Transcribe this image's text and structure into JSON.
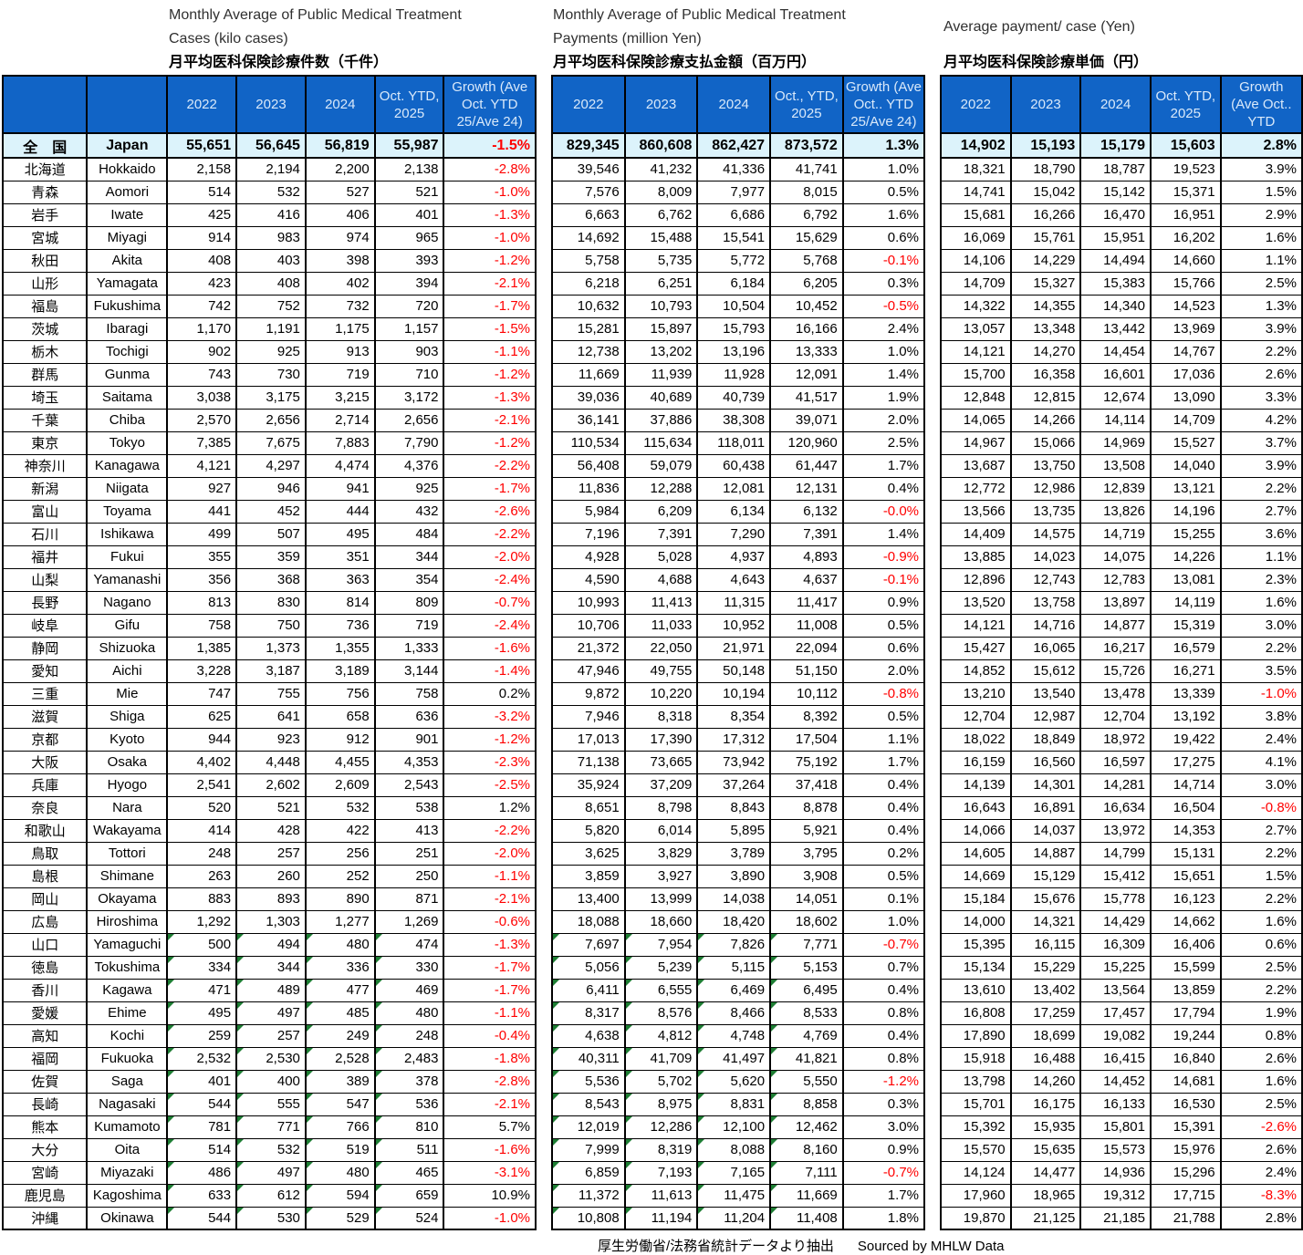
{
  "tables": [
    {
      "title_en1": "Monthly Average of Public Medical Treatment",
      "title_en2": "Cases (kilo cases)",
      "title_jp": "月平均医科保険診療件数（千件）",
      "headers": [
        "2022",
        "2023",
        "2024",
        "Oct.  YTD,\n2025",
        "Growth (Ave\nOct.  YTD\n25/Ave 24)"
      ]
    },
    {
      "title_en1": "Monthly Average of Public Medical Treatment",
      "title_en2": "Payments (million Yen)",
      "title_jp": "月平均医科保険診療支払金額（百万円）",
      "headers": [
        "2022",
        "2023",
        "2024",
        "Oct., YTD,\n2025",
        "Growth (Ave\nOct..  YTD\n25/Ave 24)"
      ]
    },
    {
      "title_en1": "",
      "title_en2": "Average payment/ case (Yen)",
      "title_jp": "月平均医科保険診療単価（円）",
      "headers": [
        "2022",
        "2023",
        "2024",
        "Oct.  YTD,\n2025",
        "Growth\n(Ave Oct..\nYTD"
      ]
    }
  ],
  "rows": [
    {
      "jp": "全　国",
      "en": "Japan",
      "t1": [
        "55,651",
        "56,645",
        "56,819",
        "55,987",
        "-1.5%"
      ],
      "t2": [
        "829,345",
        "860,608",
        "862,427",
        "873,572",
        "1.3%"
      ],
      "t3": [
        "14,902",
        "15,193",
        "15,179",
        "15,603",
        "2.8%"
      ]
    },
    {
      "jp": "北海道",
      "en": "Hokkaido",
      "t1": [
        "2,158",
        "2,194",
        "2,200",
        "2,138",
        "-2.8%"
      ],
      "t2": [
        "39,546",
        "41,232",
        "41,336",
        "41,741",
        "1.0%"
      ],
      "t3": [
        "18,321",
        "18,790",
        "18,787",
        "19,523",
        "3.9%"
      ]
    },
    {
      "jp": "青森",
      "en": "Aomori",
      "t1": [
        "514",
        "532",
        "527",
        "521",
        "-1.0%"
      ],
      "t2": [
        "7,576",
        "8,009",
        "7,977",
        "8,015",
        "0.5%"
      ],
      "t3": [
        "14,741",
        "15,042",
        "15,142",
        "15,371",
        "1.5%"
      ]
    },
    {
      "jp": "岩手",
      "en": "Iwate",
      "t1": [
        "425",
        "416",
        "406",
        "401",
        "-1.3%"
      ],
      "t2": [
        "6,663",
        "6,762",
        "6,686",
        "6,792",
        "1.6%"
      ],
      "t3": [
        "15,681",
        "16,266",
        "16,470",
        "16,951",
        "2.9%"
      ]
    },
    {
      "jp": "宮城",
      "en": "Miyagi",
      "t1": [
        "914",
        "983",
        "974",
        "965",
        "-1.0%"
      ],
      "t2": [
        "14,692",
        "15,488",
        "15,541",
        "15,629",
        "0.6%"
      ],
      "t3": [
        "16,069",
        "15,761",
        "15,951",
        "16,202",
        "1.6%"
      ]
    },
    {
      "jp": "秋田",
      "en": "Akita",
      "t1": [
        "408",
        "403",
        "398",
        "393",
        "-1.2%"
      ],
      "t2": [
        "5,758",
        "5,735",
        "5,772",
        "5,768",
        "-0.1%"
      ],
      "t3": [
        "14,106",
        "14,229",
        "14,494",
        "14,660",
        "1.1%"
      ]
    },
    {
      "jp": "山形",
      "en": "Yamagata",
      "t1": [
        "423",
        "408",
        "402",
        "394",
        "-2.1%"
      ],
      "t2": [
        "6,218",
        "6,251",
        "6,184",
        "6,205",
        "0.3%"
      ],
      "t3": [
        "14,709",
        "15,327",
        "15,383",
        "15,766",
        "2.5%"
      ]
    },
    {
      "jp": "福島",
      "en": "Fukushima",
      "t1": [
        "742",
        "752",
        "732",
        "720",
        "-1.7%"
      ],
      "t2": [
        "10,632",
        "10,793",
        "10,504",
        "10,452",
        "-0.5%"
      ],
      "t3": [
        "14,322",
        "14,355",
        "14,340",
        "14,523",
        "1.3%"
      ]
    },
    {
      "jp": "茨城",
      "en": "Ibaragi",
      "t1": [
        "1,170",
        "1,191",
        "1,175",
        "1,157",
        "-1.5%"
      ],
      "t2": [
        "15,281",
        "15,897",
        "15,793",
        "16,166",
        "2.4%"
      ],
      "t3": [
        "13,057",
        "13,348",
        "13,442",
        "13,969",
        "3.9%"
      ]
    },
    {
      "jp": "栃木",
      "en": "Tochigi",
      "t1": [
        "902",
        "925",
        "913",
        "903",
        "-1.1%"
      ],
      "t2": [
        "12,738",
        "13,202",
        "13,196",
        "13,333",
        "1.0%"
      ],
      "t3": [
        "14,121",
        "14,270",
        "14,454",
        "14,767",
        "2.2%"
      ]
    },
    {
      "jp": "群馬",
      "en": "Gunma",
      "t1": [
        "743",
        "730",
        "719",
        "710",
        "-1.2%"
      ],
      "t2": [
        "11,669",
        "11,939",
        "11,928",
        "12,091",
        "1.4%"
      ],
      "t3": [
        "15,700",
        "16,358",
        "16,601",
        "17,036",
        "2.6%"
      ]
    },
    {
      "jp": "埼玉",
      "en": "Saitama",
      "t1": [
        "3,038",
        "3,175",
        "3,215",
        "3,172",
        "-1.3%"
      ],
      "t2": [
        "39,036",
        "40,689",
        "40,739",
        "41,517",
        "1.9%"
      ],
      "t3": [
        "12,848",
        "12,815",
        "12,674",
        "13,090",
        "3.3%"
      ]
    },
    {
      "jp": "千葉",
      "en": "Chiba",
      "t1": [
        "2,570",
        "2,656",
        "2,714",
        "2,656",
        "-2.1%"
      ],
      "t2": [
        "36,141",
        "37,886",
        "38,308",
        "39,071",
        "2.0%"
      ],
      "t3": [
        "14,065",
        "14,266",
        "14,114",
        "14,709",
        "4.2%"
      ]
    },
    {
      "jp": "東京",
      "en": "Tokyo",
      "t1": [
        "7,385",
        "7,675",
        "7,883",
        "7,790",
        "-1.2%"
      ],
      "t2": [
        "110,534",
        "115,634",
        "118,011",
        "120,960",
        "2.5%"
      ],
      "t3": [
        "14,967",
        "15,066",
        "14,969",
        "15,527",
        "3.7%"
      ]
    },
    {
      "jp": "神奈川",
      "en": "Kanagawa",
      "t1": [
        "4,121",
        "4,297",
        "4,474",
        "4,376",
        "-2.2%"
      ],
      "t2": [
        "56,408",
        "59,079",
        "60,438",
        "61,447",
        "1.7%"
      ],
      "t3": [
        "13,687",
        "13,750",
        "13,508",
        "14,040",
        "3.9%"
      ]
    },
    {
      "jp": "新潟",
      "en": "Niigata",
      "t1": [
        "927",
        "946",
        "941",
        "925",
        "-1.7%"
      ],
      "t2": [
        "11,836",
        "12,288",
        "12,081",
        "12,131",
        "0.4%"
      ],
      "t3": [
        "12,772",
        "12,986",
        "12,839",
        "13,121",
        "2.2%"
      ]
    },
    {
      "jp": "富山",
      "en": "Toyama",
      "t1": [
        "441",
        "452",
        "444",
        "432",
        "-2.6%"
      ],
      "t2": [
        "5,984",
        "6,209",
        "6,134",
        "6,132",
        "-0.0%"
      ],
      "t3": [
        "13,566",
        "13,735",
        "13,826",
        "14,196",
        "2.7%"
      ]
    },
    {
      "jp": "石川",
      "en": "Ishikawa",
      "t1": [
        "499",
        "507",
        "495",
        "484",
        "-2.2%"
      ],
      "t2": [
        "7,196",
        "7,391",
        "7,290",
        "7,391",
        "1.4%"
      ],
      "t3": [
        "14,409",
        "14,575",
        "14,719",
        "15,255",
        "3.6%"
      ]
    },
    {
      "jp": "福井",
      "en": "Fukui",
      "t1": [
        "355",
        "359",
        "351",
        "344",
        "-2.0%"
      ],
      "t2": [
        "4,928",
        "5,028",
        "4,937",
        "4,893",
        "-0.9%"
      ],
      "t3": [
        "13,885",
        "14,023",
        "14,075",
        "14,226",
        "1.1%"
      ]
    },
    {
      "jp": "山梨",
      "en": "Yamanashi",
      "t1": [
        "356",
        "368",
        "363",
        "354",
        "-2.4%"
      ],
      "t2": [
        "4,590",
        "4,688",
        "4,643",
        "4,637",
        "-0.1%"
      ],
      "t3": [
        "12,896",
        "12,743",
        "12,783",
        "13,081",
        "2.3%"
      ]
    },
    {
      "jp": "長野",
      "en": "Nagano",
      "t1": [
        "813",
        "830",
        "814",
        "809",
        "-0.7%"
      ],
      "t2": [
        "10,993",
        "11,413",
        "11,315",
        "11,417",
        "0.9%"
      ],
      "t3": [
        "13,520",
        "13,758",
        "13,897",
        "14,119",
        "1.6%"
      ]
    },
    {
      "jp": "岐阜",
      "en": "Gifu",
      "t1": [
        "758",
        "750",
        "736",
        "719",
        "-2.4%"
      ],
      "t2": [
        "10,706",
        "11,033",
        "10,952",
        "11,008",
        "0.5%"
      ],
      "t3": [
        "14,121",
        "14,716",
        "14,877",
        "15,319",
        "3.0%"
      ]
    },
    {
      "jp": "静岡",
      "en": "Shizuoka",
      "t1": [
        "1,385",
        "1,373",
        "1,355",
        "1,333",
        "-1.6%"
      ],
      "t2": [
        "21,372",
        "22,050",
        "21,971",
        "22,094",
        "0.6%"
      ],
      "t3": [
        "15,427",
        "16,065",
        "16,217",
        "16,579",
        "2.2%"
      ]
    },
    {
      "jp": "愛知",
      "en": "Aichi",
      "t1": [
        "3,228",
        "3,187",
        "3,189",
        "3,144",
        "-1.4%"
      ],
      "t2": [
        "47,946",
        "49,755",
        "50,148",
        "51,150",
        "2.0%"
      ],
      "t3": [
        "14,852",
        "15,612",
        "15,726",
        "16,271",
        "3.5%"
      ]
    },
    {
      "jp": "三重",
      "en": "Mie",
      "t1": [
        "747",
        "755",
        "756",
        "758",
        "0.2%"
      ],
      "t2": [
        "9,872",
        "10,220",
        "10,194",
        "10,112",
        "-0.8%"
      ],
      "t3": [
        "13,210",
        "13,540",
        "13,478",
        "13,339",
        "-1.0%"
      ]
    },
    {
      "jp": "滋賀",
      "en": "Shiga",
      "t1": [
        "625",
        "641",
        "658",
        "636",
        "-3.2%"
      ],
      "t2": [
        "7,946",
        "8,318",
        "8,354",
        "8,392",
        "0.5%"
      ],
      "t3": [
        "12,704",
        "12,987",
        "12,704",
        "13,192",
        "3.8%"
      ]
    },
    {
      "jp": "京都",
      "en": "Kyoto",
      "t1": [
        "944",
        "923",
        "912",
        "901",
        "-1.2%"
      ],
      "t2": [
        "17,013",
        "17,390",
        "17,312",
        "17,504",
        "1.1%"
      ],
      "t3": [
        "18,022",
        "18,849",
        "18,972",
        "19,422",
        "2.4%"
      ]
    },
    {
      "jp": "大阪",
      "en": "Osaka",
      "t1": [
        "4,402",
        "4,448",
        "4,455",
        "4,353",
        "-2.3%"
      ],
      "t2": [
        "71,138",
        "73,665",
        "73,942",
        "75,192",
        "1.7%"
      ],
      "t3": [
        "16,159",
        "16,560",
        "16,597",
        "17,275",
        "4.1%"
      ]
    },
    {
      "jp": "兵庫",
      "en": "Hyogo",
      "t1": [
        "2,541",
        "2,602",
        "2,609",
        "2,543",
        "-2.5%"
      ],
      "t2": [
        "35,924",
        "37,209",
        "37,264",
        "37,418",
        "0.4%"
      ],
      "t3": [
        "14,139",
        "14,301",
        "14,281",
        "14,714",
        "3.0%"
      ]
    },
    {
      "jp": "奈良",
      "en": "Nara",
      "t1": [
        "520",
        "521",
        "532",
        "538",
        "1.2%"
      ],
      "t2": [
        "8,651",
        "8,798",
        "8,843",
        "8,878",
        "0.4%"
      ],
      "t3": [
        "16,643",
        "16,891",
        "16,634",
        "16,504",
        "-0.8%"
      ]
    },
    {
      "jp": "和歌山",
      "en": "Wakayama",
      "t1": [
        "414",
        "428",
        "422",
        "413",
        "-2.2%"
      ],
      "t2": [
        "5,820",
        "6,014",
        "5,895",
        "5,921",
        "0.4%"
      ],
      "t3": [
        "14,066",
        "14,037",
        "13,972",
        "14,353",
        "2.7%"
      ]
    },
    {
      "jp": "鳥取",
      "en": "Tottori",
      "t1": [
        "248",
        "257",
        "256",
        "251",
        "-2.0%"
      ],
      "t2": [
        "3,625",
        "3,829",
        "3,789",
        "3,795",
        "0.2%"
      ],
      "t3": [
        "14,605",
        "14,887",
        "14,799",
        "15,131",
        "2.2%"
      ]
    },
    {
      "jp": "島根",
      "en": "Shimane",
      "t1": [
        "263",
        "260",
        "252",
        "250",
        "-1.1%"
      ],
      "t2": [
        "3,859",
        "3,927",
        "3,890",
        "3,908",
        "0.5%"
      ],
      "t3": [
        "14,669",
        "15,129",
        "15,412",
        "15,651",
        "1.5%"
      ]
    },
    {
      "jp": "岡山",
      "en": "Okayama",
      "t1": [
        "883",
        "893",
        "890",
        "871",
        "-2.1%"
      ],
      "t2": [
        "13,400",
        "13,999",
        "14,038",
        "14,051",
        "0.1%"
      ],
      "t3": [
        "15,184",
        "15,676",
        "15,778",
        "16,123",
        "2.2%"
      ]
    },
    {
      "jp": "広島",
      "en": "Hiroshima",
      "t1": [
        "1,292",
        "1,303",
        "1,277",
        "1,269",
        "-0.6%"
      ],
      "t2": [
        "18,088",
        "18,660",
        "18,420",
        "18,602",
        "1.0%"
      ],
      "t3": [
        "14,000",
        "14,321",
        "14,429",
        "14,662",
        "1.6%"
      ]
    },
    {
      "jp": "山口",
      "en": "Yamaguchi",
      "t1": [
        "500",
        "494",
        "480",
        "474",
        "-1.3%"
      ],
      "t2": [
        "7,697",
        "7,954",
        "7,826",
        "7,771",
        "-0.7%"
      ],
      "t3": [
        "15,395",
        "16,115",
        "16,309",
        "16,406",
        "0.6%"
      ]
    },
    {
      "jp": "徳島",
      "en": "Tokushima",
      "t1": [
        "334",
        "344",
        "336",
        "330",
        "-1.7%"
      ],
      "t2": [
        "5,056",
        "5,239",
        "5,115",
        "5,153",
        "0.7%"
      ],
      "t3": [
        "15,134",
        "15,229",
        "15,225",
        "15,599",
        "2.5%"
      ]
    },
    {
      "jp": "香川",
      "en": "Kagawa",
      "t1": [
        "471",
        "489",
        "477",
        "469",
        "-1.7%"
      ],
      "t2": [
        "6,411",
        "6,555",
        "6,469",
        "6,495",
        "0.4%"
      ],
      "t3": [
        "13,610",
        "13,402",
        "13,564",
        "13,859",
        "2.2%"
      ]
    },
    {
      "jp": "愛媛",
      "en": "Ehime",
      "t1": [
        "495",
        "497",
        "485",
        "480",
        "-1.1%"
      ],
      "t2": [
        "8,317",
        "8,576",
        "8,466",
        "8,533",
        "0.8%"
      ],
      "t3": [
        "16,808",
        "17,259",
        "17,457",
        "17,794",
        "1.9%"
      ]
    },
    {
      "jp": "高知",
      "en": "Kochi",
      "t1": [
        "259",
        "257",
        "249",
        "248",
        "-0.4%"
      ],
      "t2": [
        "4,638",
        "4,812",
        "4,748",
        "4,769",
        "0.4%"
      ],
      "t3": [
        "17,890",
        "18,699",
        "19,082",
        "19,244",
        "0.8%"
      ]
    },
    {
      "jp": "福岡",
      "en": "Fukuoka",
      "t1": [
        "2,532",
        "2,530",
        "2,528",
        "2,483",
        "-1.8%"
      ],
      "t2": [
        "40,311",
        "41,709",
        "41,497",
        "41,821",
        "0.8%"
      ],
      "t3": [
        "15,918",
        "16,488",
        "16,415",
        "16,840",
        "2.6%"
      ]
    },
    {
      "jp": "佐賀",
      "en": "Saga",
      "t1": [
        "401",
        "400",
        "389",
        "378",
        "-2.8%"
      ],
      "t2": [
        "5,536",
        "5,702",
        "5,620",
        "5,550",
        "-1.2%"
      ],
      "t3": [
        "13,798",
        "14,260",
        "14,452",
        "14,681",
        "1.6%"
      ]
    },
    {
      "jp": "長崎",
      "en": "Nagasaki",
      "t1": [
        "544",
        "555",
        "547",
        "536",
        "-2.1%"
      ],
      "t2": [
        "8,543",
        "8,975",
        "8,831",
        "8,858",
        "0.3%"
      ],
      "t3": [
        "15,701",
        "16,175",
        "16,133",
        "16,530",
        "2.5%"
      ]
    },
    {
      "jp": "熊本",
      "en": "Kumamoto",
      "t1": [
        "781",
        "771",
        "766",
        "810",
        "5.7%"
      ],
      "t2": [
        "12,019",
        "12,286",
        "12,100",
        "12,462",
        "3.0%"
      ],
      "t3": [
        "15,392",
        "15,935",
        "15,801",
        "15,391",
        "-2.6%"
      ]
    },
    {
      "jp": "大分",
      "en": "Oita",
      "t1": [
        "514",
        "532",
        "519",
        "511",
        "-1.6%"
      ],
      "t2": [
        "7,999",
        "8,319",
        "8,088",
        "8,160",
        "0.9%"
      ],
      "t3": [
        "15,570",
        "15,635",
        "15,573",
        "15,976",
        "2.6%"
      ]
    },
    {
      "jp": "宮崎",
      "en": "Miyazaki",
      "t1": [
        "486",
        "497",
        "480",
        "465",
        "-3.1%"
      ],
      "t2": [
        "6,859",
        "7,193",
        "7,165",
        "7,111",
        "-0.7%"
      ],
      "t3": [
        "14,124",
        "14,477",
        "14,936",
        "15,296",
        "2.4%"
      ]
    },
    {
      "jp": "鹿児島",
      "en": "Kagoshima",
      "t1": [
        "633",
        "612",
        "594",
        "659",
        "10.9%"
      ],
      "t2": [
        "11,372",
        "11,613",
        "11,475",
        "11,669",
        "1.7%"
      ],
      "t3": [
        "17,960",
        "18,965",
        "19,312",
        "17,715",
        "-8.3%"
      ]
    },
    {
      "jp": "沖縄",
      "en": "Okinawa",
      "t1": [
        "544",
        "530",
        "529",
        "524",
        "-1.0%"
      ],
      "t2": [
        "10,808",
        "11,194",
        "11,204",
        "11,408",
        "1.8%"
      ],
      "t3": [
        "19,870",
        "21,125",
        "21,185",
        "21,788",
        "2.8%"
      ]
    }
  ],
  "footer": {
    "jp_text": "厚生労働省/法務省統計データより抽出",
    "en_text": "Sourced by MHLW Data"
  }
}
